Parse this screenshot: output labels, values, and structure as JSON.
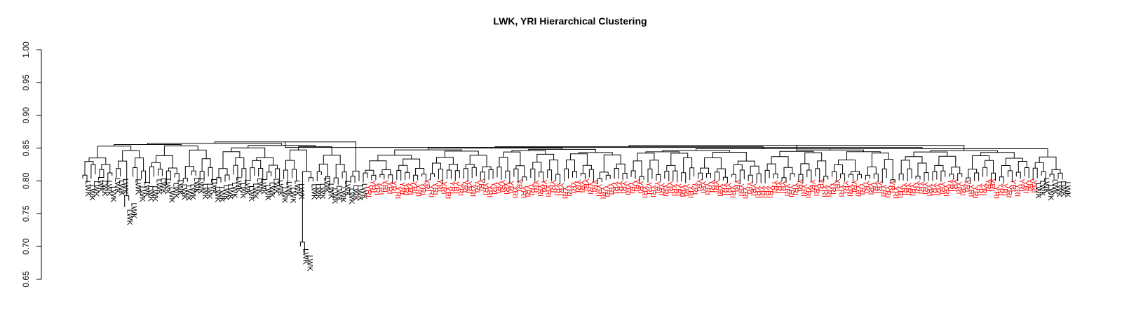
{
  "chart_data": {
    "type": "dendrogram",
    "title": "LWK, YRI Hierarchical Clustering",
    "xlabel": "",
    "ylabel": "",
    "ylim": [
      0.65,
      1.0
    ],
    "yticks": [
      1.0,
      0.95,
      0.9,
      0.85,
      0.8,
      0.75,
      0.7,
      0.65
    ],
    "ytick_labels": [
      "1.00",
      "0.95",
      "0.90",
      "0.85",
      "0.80",
      "0.75",
      "0.70",
      "0.65"
    ],
    "grid": false,
    "legend": "none",
    "root_height": 0.851,
    "groups": [
      {
        "label": "LWK",
        "color": "#000000",
        "count": 67,
        "merge_height": 0.856
      },
      {
        "label": "YRI",
        "color": "#ff0000",
        "count": 160,
        "merge_height": 0.848
      },
      {
        "label": "LWK",
        "color": "#000000",
        "count": 8,
        "merge_height": 0.849
      }
    ],
    "notable_leaves": [
      {
        "label": "LWK",
        "height": 0.76
      },
      {
        "label": "LWK",
        "height": 0.77
      },
      {
        "label": "LWK",
        "height": 0.7
      },
      {
        "label": "LWK",
        "height": 0.69
      }
    ]
  },
  "colors": {
    "lwk": "#000000",
    "yri": "#ff0000",
    "axis": "#000000"
  }
}
